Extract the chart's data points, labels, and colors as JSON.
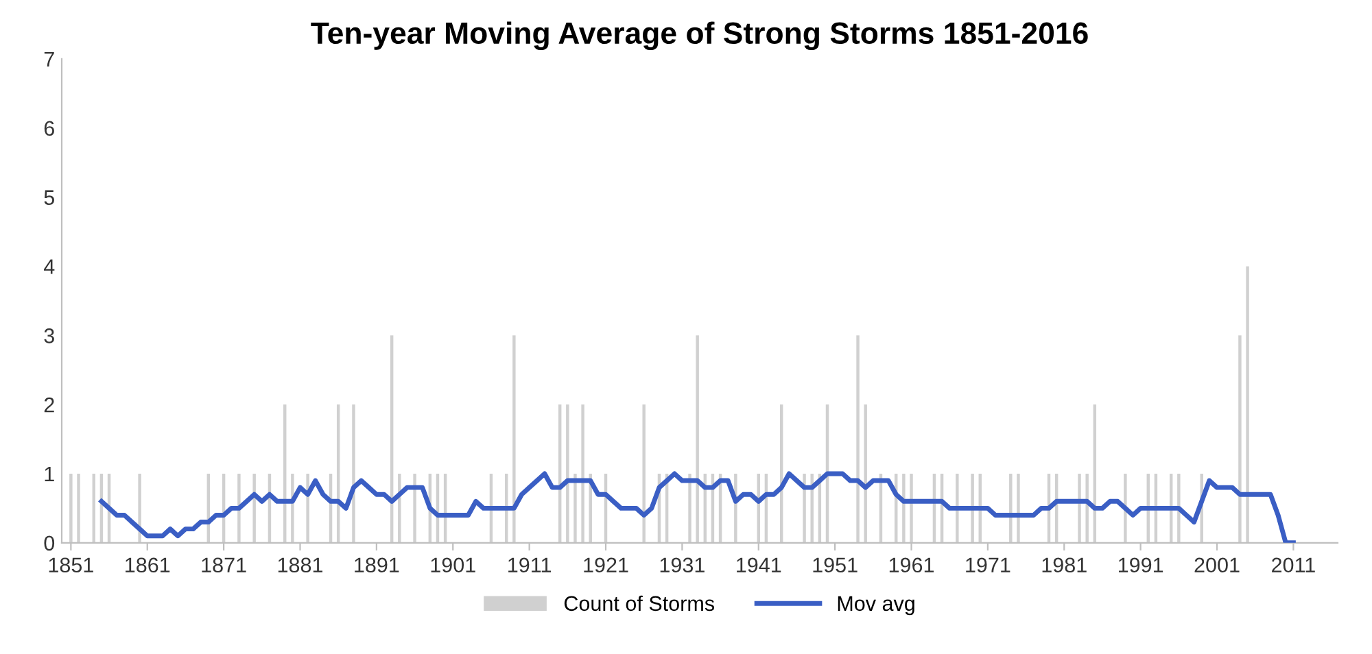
{
  "chart_data": {
    "type": "bar",
    "title": "Ten-year Moving Average of Strong Storms 1851-2016",
    "x": [
      1851,
      1852,
      1853,
      1854,
      1855,
      1856,
      1857,
      1858,
      1859,
      1860,
      1861,
      1862,
      1863,
      1864,
      1865,
      1866,
      1867,
      1868,
      1869,
      1870,
      1871,
      1872,
      1873,
      1874,
      1875,
      1876,
      1877,
      1878,
      1879,
      1880,
      1881,
      1882,
      1883,
      1884,
      1885,
      1886,
      1887,
      1888,
      1889,
      1890,
      1891,
      1892,
      1893,
      1894,
      1895,
      1896,
      1897,
      1898,
      1899,
      1900,
      1901,
      1902,
      1903,
      1904,
      1905,
      1906,
      1907,
      1908,
      1909,
      1910,
      1911,
      1912,
      1913,
      1914,
      1915,
      1916,
      1917,
      1918,
      1919,
      1920,
      1921,
      1922,
      1923,
      1924,
      1925,
      1926,
      1927,
      1928,
      1929,
      1930,
      1931,
      1932,
      1933,
      1934,
      1935,
      1936,
      1937,
      1938,
      1939,
      1940,
      1941,
      1942,
      1943,
      1944,
      1945,
      1946,
      1947,
      1948,
      1949,
      1950,
      1951,
      1952,
      1953,
      1954,
      1955,
      1956,
      1957,
      1958,
      1959,
      1960,
      1961,
      1962,
      1963,
      1964,
      1965,
      1966,
      1967,
      1968,
      1969,
      1970,
      1971,
      1972,
      1973,
      1974,
      1975,
      1976,
      1977,
      1978,
      1979,
      1980,
      1981,
      1982,
      1983,
      1984,
      1985,
      1986,
      1987,
      1988,
      1989,
      1990,
      1991,
      1992,
      1993,
      1994,
      1995,
      1996,
      1997,
      1998,
      1999,
      2000,
      2001,
      2002,
      2003,
      2004,
      2005,
      2006,
      2007,
      2008,
      2009,
      2010,
      2011,
      2012,
      2013,
      2014,
      2015,
      2016
    ],
    "series": [
      {
        "name": "Count of Storms",
        "color": "#d0d0d0",
        "values": [
          1,
          1,
          0,
          1,
          1,
          1,
          0,
          0,
          0,
          1,
          0,
          0,
          0,
          0,
          0,
          0,
          0,
          0,
          1,
          0,
          1,
          0,
          1,
          0,
          1,
          0,
          1,
          0,
          2,
          1,
          0,
          1,
          0,
          0,
          1,
          2,
          0,
          2,
          0,
          0,
          0,
          0,
          3,
          1,
          0,
          1,
          0,
          1,
          1,
          1,
          0,
          0,
          0,
          0,
          0,
          1,
          0,
          1,
          3,
          0,
          0,
          0,
          0,
          0,
          2,
          2,
          1,
          2,
          1,
          0,
          1,
          0,
          0,
          0,
          0,
          2,
          0,
          1,
          1,
          0,
          0,
          1,
          3,
          1,
          1,
          1,
          0,
          1,
          0,
          0,
          1,
          1,
          0,
          2,
          0,
          0,
          1,
          1,
          1,
          2,
          0,
          0,
          0,
          3,
          2,
          0,
          1,
          0,
          1,
          1,
          1,
          0,
          0,
          1,
          1,
          0,
          1,
          0,
          1,
          1,
          0,
          0,
          0,
          1,
          1,
          0,
          0,
          0,
          1,
          1,
          0,
          0,
          1,
          1,
          2,
          0,
          0,
          0,
          1,
          0,
          0,
          1,
          1,
          0,
          1,
          1,
          0,
          0,
          1,
          0,
          0,
          0,
          0,
          3,
          4,
          0,
          0,
          0,
          0,
          0,
          0,
          0,
          0,
          0,
          0,
          0
        ]
      },
      {
        "name": "Mov avg",
        "type": "line",
        "color": "#3a5ec4",
        "values": [
          null,
          null,
          null,
          null,
          0.6,
          0.5,
          0.4,
          0.4,
          0.3,
          0.2,
          0.1,
          0.1,
          0.1,
          0.2,
          0.1,
          0.2,
          0.2,
          0.3,
          0.3,
          0.4,
          0.4,
          0.5,
          0.5,
          0.6,
          0.7,
          0.6,
          0.7,
          0.6,
          0.6,
          0.6,
          0.8,
          0.7,
          0.9,
          0.7,
          0.6,
          0.6,
          0.5,
          0.8,
          0.9,
          0.8,
          0.7,
          0.7,
          0.6,
          0.7,
          0.8,
          0.8,
          0.8,
          0.5,
          0.4,
          0.4,
          0.4,
          0.4,
          0.4,
          0.6,
          0.5,
          0.5,
          0.5,
          0.5,
          0.5,
          0.7,
          0.8,
          0.9,
          1.0,
          0.8,
          0.8,
          0.9,
          0.9,
          0.9,
          0.9,
          0.7,
          0.7,
          0.6,
          0.5,
          0.5,
          0.5,
          0.4,
          0.5,
          0.8,
          0.9,
          1.0,
          0.9,
          0.9,
          0.9,
          0.8,
          0.8,
          0.9,
          0.9,
          0.6,
          0.7,
          0.7,
          0.6,
          0.7,
          0.7,
          0.8,
          1.0,
          0.9,
          0.8,
          0.8,
          0.9,
          1.0,
          1.0,
          1.0,
          0.9,
          0.9,
          0.8,
          0.9,
          0.9,
          0.9,
          0.7,
          0.6,
          0.6,
          0.6,
          0.6,
          0.6,
          0.6,
          0.5,
          0.5,
          0.5,
          0.5,
          0.5,
          0.5,
          0.4,
          0.4,
          0.4,
          0.4,
          0.4,
          0.4,
          0.5,
          0.5,
          0.6,
          0.6,
          0.6,
          0.6,
          0.6,
          0.5,
          0.5,
          0.6,
          0.6,
          0.5,
          0.4,
          0.5,
          0.5,
          0.5,
          0.5,
          0.5,
          0.5,
          0.4,
          0.3,
          0.6,
          0.9,
          0.8,
          0.8,
          0.8,
          0.7,
          0.7,
          0.7,
          0.7,
          0.7,
          0.4,
          0,
          0,
          null,
          null,
          null,
          null,
          null
        ]
      }
    ],
    "xlim": [
      1849.8,
      2016.8
    ],
    "xticks": [
      1851,
      1861,
      1871,
      1881,
      1891,
      1901,
      1911,
      1921,
      1931,
      1941,
      1951,
      1961,
      1971,
      1981,
      1991,
      2001,
      2011
    ],
    "ylim": [
      0,
      7
    ],
    "yticks": [
      0,
      1,
      2,
      3,
      4,
      5,
      6,
      7
    ],
    "grid": false,
    "legend": "bottom"
  }
}
